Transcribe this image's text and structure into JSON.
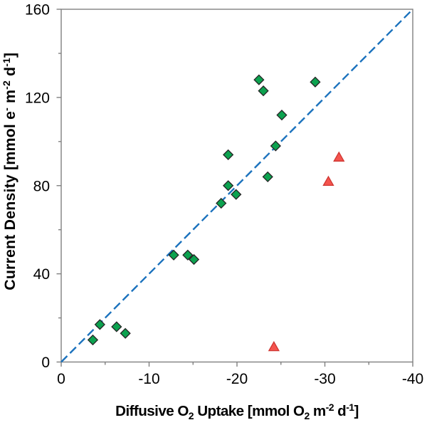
{
  "chart_data": {
    "type": "scatter",
    "title": "",
    "xlabel_segments": [
      {
        "t": "Diffusive O"
      },
      {
        "t": "2",
        "style": "sub"
      },
      {
        "t": " Uptake [mmol O"
      },
      {
        "t": "2",
        "style": "sub"
      },
      {
        "t": " m"
      },
      {
        "t": "-2",
        "style": "sup"
      },
      {
        "t": " d"
      },
      {
        "t": "-1",
        "style": "sup"
      },
      {
        "t": "]"
      }
    ],
    "ylabel_segments": [
      {
        "t": "Current Density [mmol e"
      },
      {
        "t": "-",
        "style": "sup"
      },
      {
        "t": " m"
      },
      {
        "t": "-2",
        "style": "sup"
      },
      {
        "t": " d"
      },
      {
        "t": "-1",
        "style": "sup"
      },
      {
        "t": "]"
      }
    ],
    "xlabel_plain": "Diffusive O2 Uptake [mmol O2 m-2 d-1]",
    "ylabel_plain": "Current Density [mmol e- m-2 d-1]",
    "xlim": [
      0,
      -40
    ],
    "ylim": [
      0,
      160
    ],
    "x_major_ticks": [
      0,
      -10,
      -20,
      -30,
      -40
    ],
    "x_tick_labels": [
      "0",
      "-10",
      "-20",
      "-30",
      "-40"
    ],
    "x_minor_ticks": [
      -5,
      -15,
      -25,
      -35
    ],
    "y_major_ticks": [
      0,
      40,
      80,
      120,
      160
    ],
    "y_tick_labels": [
      "0",
      "40",
      "80",
      "120",
      "160"
    ],
    "y_minor_ticks": [
      20,
      60,
      100,
      140
    ],
    "grid": false,
    "legend": false,
    "frame": true,
    "series": [
      {
        "name": "green-diamonds",
        "marker": "diamond",
        "fill": "#0ca24f",
        "stroke": "#252525",
        "points": [
          {
            "x": -3.6,
            "y": 10
          },
          {
            "x": -4.4,
            "y": 17
          },
          {
            "x": -6.3,
            "y": 16
          },
          {
            "x": -7.3,
            "y": 13
          },
          {
            "x": -12.8,
            "y": 48.5
          },
          {
            "x": -14.4,
            "y": 48.5
          },
          {
            "x": -15.1,
            "y": 46.5
          },
          {
            "x": -18.2,
            "y": 72
          },
          {
            "x": -19.0,
            "y": 94
          },
          {
            "x": -19.0,
            "y": 80
          },
          {
            "x": -19.9,
            "y": 76
          },
          {
            "x": -22.5,
            "y": 128
          },
          {
            "x": -23.0,
            "y": 123
          },
          {
            "x": -23.5,
            "y": 84
          },
          {
            "x": -24.4,
            "y": 98
          },
          {
            "x": -25.1,
            "y": 112
          },
          {
            "x": -28.9,
            "y": 127
          }
        ]
      },
      {
        "name": "red-triangles",
        "marker": "triangle",
        "fill": "#f4544e",
        "stroke": "#cf3631",
        "points": [
          {
            "x": -24.2,
            "y": 7
          },
          {
            "x": -30.4,
            "y": 82
          },
          {
            "x": -31.6,
            "y": 93
          }
        ]
      }
    ],
    "reference_line": {
      "name": "dashed-1-to-4-line",
      "x": [
        0,
        -40
      ],
      "y": [
        0,
        160
      ],
      "color": "#1b72bd",
      "style": "dashed"
    },
    "colors": {
      "axis": "#808080",
      "tick_label": "#000000",
      "title": "#000000",
      "background": "#ffffff"
    }
  }
}
